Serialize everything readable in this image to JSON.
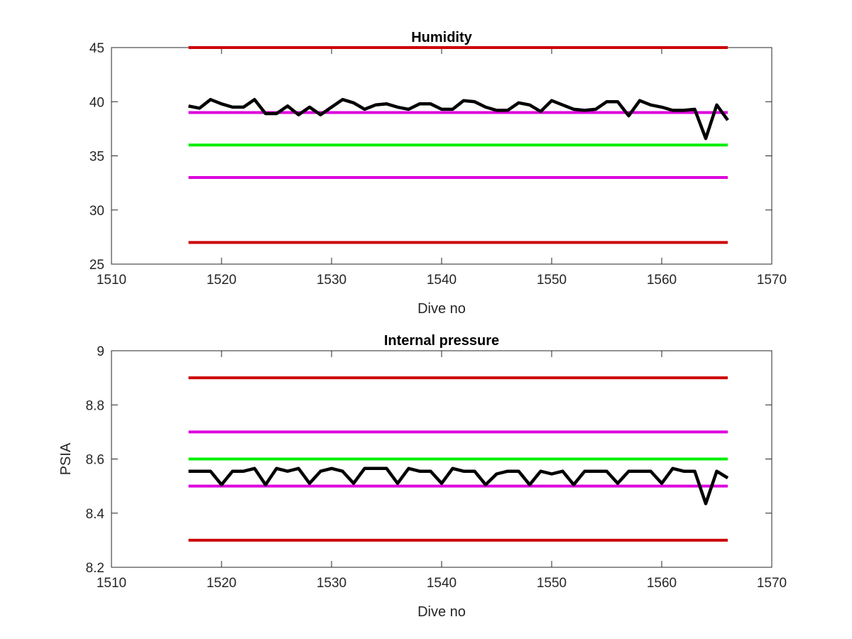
{
  "chart_data": [
    {
      "type": "line",
      "title": "Humidity",
      "xlabel": "Dive no",
      "ylabel": "",
      "xlim": [
        1510,
        1570
      ],
      "ylim": [
        25,
        45
      ],
      "xticks": [
        1510,
        1520,
        1530,
        1540,
        1550,
        1560,
        1570
      ],
      "yticks": [
        25,
        30,
        35,
        40,
        45
      ],
      "grid": false,
      "series": [
        {
          "color": "#000000",
          "x": [
            1517,
            1518,
            1519,
            1520,
            1521,
            1522,
            1523,
            1524,
            1525,
            1526,
            1527,
            1528,
            1529,
            1530,
            1531,
            1532,
            1533,
            1534,
            1535,
            1536,
            1537,
            1538,
            1539,
            1540,
            1541,
            1542,
            1543,
            1544,
            1545,
            1546,
            1547,
            1548,
            1549,
            1550,
            1551,
            1552,
            1553,
            1554,
            1555,
            1556,
            1557,
            1558,
            1559,
            1560,
            1561,
            1562,
            1563,
            1564,
            1565,
            1566
          ],
          "values": [
            39.6,
            39.4,
            40.2,
            39.8,
            39.5,
            39.5,
            40.2,
            38.9,
            38.9,
            39.6,
            38.8,
            39.5,
            38.8,
            39.5,
            40.2,
            39.9,
            39.3,
            39.7,
            39.8,
            39.5,
            39.3,
            39.8,
            39.8,
            39.3,
            39.3,
            40.1,
            40.0,
            39.5,
            39.2,
            39.2,
            39.9,
            39.7,
            39.1,
            40.1,
            39.7,
            39.3,
            39.2,
            39.3,
            40.0,
            40.0,
            38.7,
            40.1,
            39.7,
            39.5,
            39.2,
            39.2,
            39.3,
            36.6,
            39.7,
            38.3
          ]
        },
        {
          "color": "#cc0000",
          "x": [
            1517,
            1566
          ],
          "values": [
            45,
            45
          ]
        },
        {
          "color": "#dd00dd",
          "x": [
            1517,
            1566
          ],
          "values": [
            39,
            39
          ]
        },
        {
          "color": "#00ee00",
          "x": [
            1517,
            1566
          ],
          "values": [
            36,
            36
          ]
        },
        {
          "color": "#dd00dd",
          "x": [
            1517,
            1566
          ],
          "values": [
            33,
            33
          ]
        },
        {
          "color": "#cc0000",
          "x": [
            1517,
            1566
          ],
          "values": [
            27,
            27
          ]
        }
      ]
    },
    {
      "type": "line",
      "title": "Internal pressure",
      "xlabel": "Dive no",
      "ylabel": "PSIA",
      "xlim": [
        1510,
        1570
      ],
      "ylim": [
        8.2,
        9
      ],
      "xticks": [
        1510,
        1520,
        1530,
        1540,
        1550,
        1560,
        1570
      ],
      "yticks": [
        8.2,
        8.4,
        8.6,
        8.8,
        9
      ],
      "grid": false,
      "series": [
        {
          "color": "#000000",
          "x": [
            1517,
            1518,
            1519,
            1520,
            1521,
            1522,
            1523,
            1524,
            1525,
            1526,
            1527,
            1528,
            1529,
            1530,
            1531,
            1532,
            1533,
            1534,
            1535,
            1536,
            1537,
            1538,
            1539,
            1540,
            1541,
            1542,
            1543,
            1544,
            1545,
            1546,
            1547,
            1548,
            1549,
            1550,
            1551,
            1552,
            1553,
            1554,
            1555,
            1556,
            1557,
            1558,
            1559,
            1560,
            1561,
            1562,
            1563,
            1564,
            1565,
            1566
          ],
          "values": [
            8.555,
            8.555,
            8.555,
            8.505,
            8.555,
            8.555,
            8.565,
            8.505,
            8.565,
            8.555,
            8.565,
            8.51,
            8.555,
            8.565,
            8.555,
            8.51,
            8.565,
            8.565,
            8.565,
            8.51,
            8.565,
            8.555,
            8.555,
            8.51,
            8.565,
            8.555,
            8.555,
            8.505,
            8.545,
            8.555,
            8.555,
            8.505,
            8.555,
            8.545,
            8.555,
            8.505,
            8.555,
            8.555,
            8.555,
            8.51,
            8.555,
            8.555,
            8.555,
            8.51,
            8.565,
            8.555,
            8.555,
            8.435,
            8.555,
            8.53
          ]
        },
        {
          "color": "#cc0000",
          "x": [
            1517,
            1566
          ],
          "values": [
            8.9,
            8.9
          ]
        },
        {
          "color": "#dd00dd",
          "x": [
            1517,
            1566
          ],
          "values": [
            8.7,
            8.7
          ]
        },
        {
          "color": "#00ee00",
          "x": [
            1517,
            1566
          ],
          "values": [
            8.6,
            8.6
          ]
        },
        {
          "color": "#dd00dd",
          "x": [
            1517,
            1566
          ],
          "values": [
            8.5,
            8.5
          ]
        },
        {
          "color": "#cc0000",
          "x": [
            1517,
            1566
          ],
          "values": [
            8.3,
            8.3
          ]
        }
      ]
    }
  ]
}
